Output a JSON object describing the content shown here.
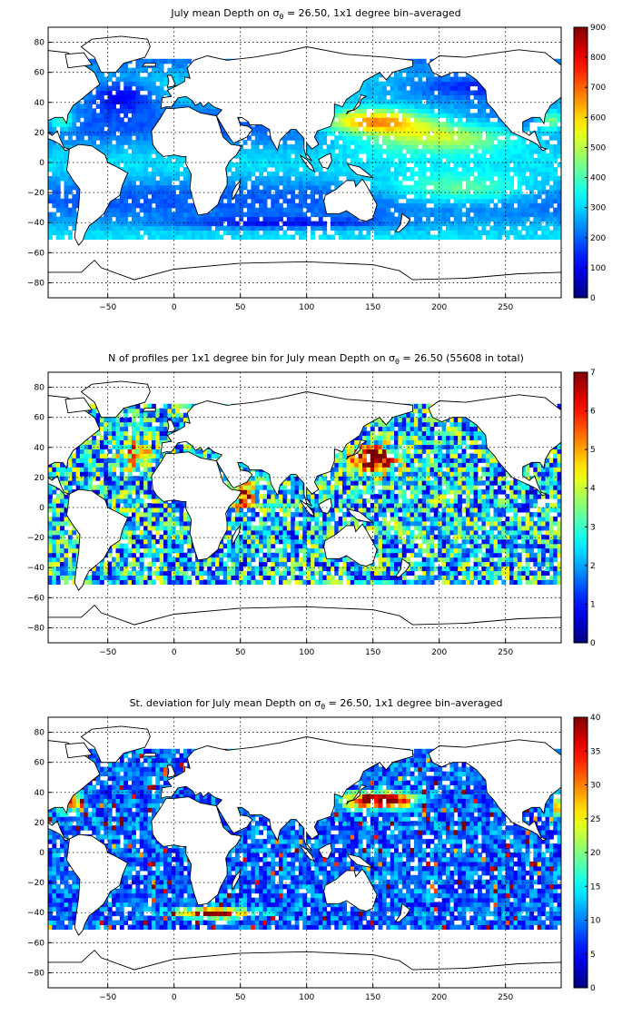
{
  "figure": {
    "colormap": "jet",
    "background": "#ffffff"
  },
  "chart_data": [
    {
      "type": "heatmap",
      "title": {
        "prefix": "July mean Depth on σ",
        "sub": "θ",
        "suffix": " = 26.50, 1x1 degree bin–averaged"
      },
      "xlim": [
        -95,
        292
      ],
      "ylim": [
        -90,
        90
      ],
      "xticks": [
        -50,
        0,
        50,
        100,
        150,
        200,
        250
      ],
      "yticks": [
        -80,
        -60,
        -40,
        -20,
        0,
        20,
        40,
        60,
        80
      ],
      "grid": true,
      "colorbar": {
        "range": [
          0,
          900
        ],
        "ticks": [
          0,
          100,
          200,
          300,
          400,
          500,
          600,
          700,
          800,
          900
        ]
      },
      "field": "depth"
    },
    {
      "type": "heatmap",
      "title": {
        "prefix": "N of profiles per 1x1 degree bin for July mean Depth on σ",
        "sub": "θ",
        "suffix": " = 26.50 (55608 in total)"
      },
      "xlim": [
        -95,
        292
      ],
      "ylim": [
        -90,
        90
      ],
      "xticks": [
        -50,
        0,
        50,
        100,
        150,
        200,
        250
      ],
      "yticks": [
        -80,
        -60,
        -40,
        -20,
        0,
        20,
        40,
        60,
        80
      ],
      "grid": true,
      "colorbar": {
        "range": [
          0,
          7
        ],
        "ticks": [
          0,
          1,
          2,
          3,
          4,
          5,
          6,
          7
        ]
      },
      "field": "count"
    },
    {
      "type": "heatmap",
      "title": {
        "prefix": "St. deviation for July mean Depth on σ",
        "sub": "θ",
        "suffix": " = 26.50, 1x1 degree bin–averaged"
      },
      "xlim": [
        -95,
        292
      ],
      "ylim": [
        -90,
        90
      ],
      "xticks": [
        -50,
        0,
        50,
        100,
        150,
        200,
        250
      ],
      "yticks": [
        -80,
        -60,
        -40,
        -20,
        0,
        20,
        40,
        60,
        80
      ],
      "grid": true,
      "colorbar": {
        "range": [
          0,
          40
        ],
        "ticks": [
          0,
          5,
          10,
          15,
          20,
          25,
          30,
          35,
          40
        ]
      },
      "field": "std"
    }
  ]
}
